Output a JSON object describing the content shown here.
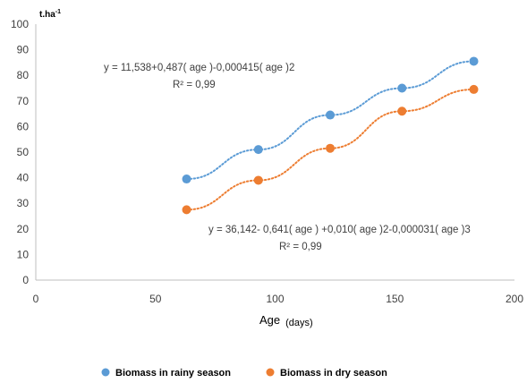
{
  "chart_data": {
    "type": "scatter",
    "ylabel": "t.ha",
    "ylabel_sup": "-1",
    "xlabel": "Age",
    "xlabel_unit": "(days)",
    "xlim": [
      0,
      200
    ],
    "ylim": [
      0,
      100
    ],
    "xticks": [
      0,
      50,
      100,
      150,
      200
    ],
    "yticks": [
      0,
      10,
      20,
      30,
      40,
      50,
      60,
      70,
      80,
      90,
      100
    ],
    "grid": false,
    "legend_position": "bottom",
    "series": [
      {
        "name": "Biomass in rainy season",
        "color": "#5b9bd5",
        "x": [
          63,
          93,
          123,
          153,
          183
        ],
        "y": [
          39.5,
          51,
          64.5,
          75,
          85.5
        ],
        "trendline": "dotted",
        "equation": "y = 11,538+0,487( age )-0,000415( age )2",
        "r2": "R² = 0,99"
      },
      {
        "name": "Biomass in dry season",
        "color": "#ed7d31",
        "x": [
          63,
          93,
          123,
          153,
          183
        ],
        "y": [
          27.5,
          39,
          51.5,
          66,
          74.5
        ],
        "trendline": "dotted",
        "equation": "y = 36,142- 0,641( age ) +0,010( age )2-0,000031( age )3",
        "r2": "R² = 0,99"
      }
    ]
  }
}
